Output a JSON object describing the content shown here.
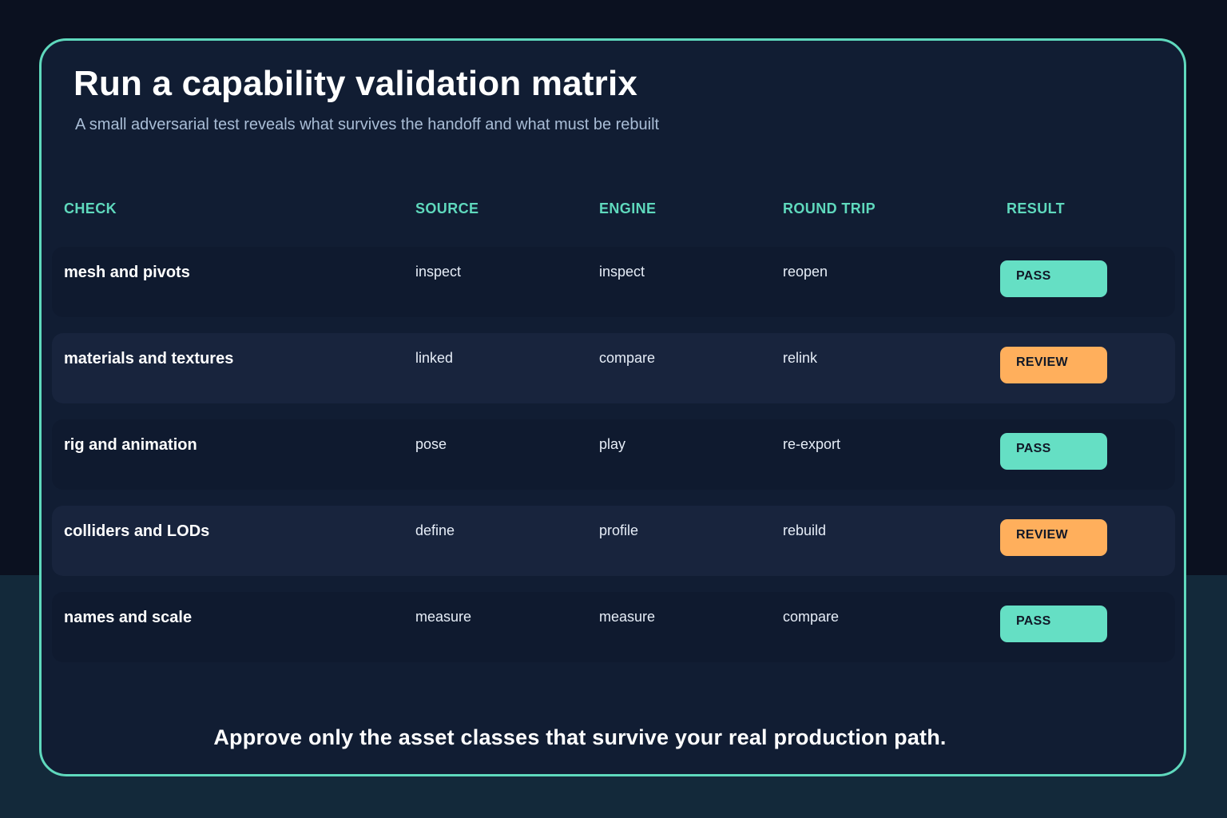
{
  "title": "Run a capability validation matrix",
  "subtitle": "A small adversarial test reveals what survives the handoff and what must be rebuilt",
  "columns": {
    "check": "CHECK",
    "source": "SOURCE",
    "engine": "ENGINE",
    "round_trip": "ROUND TRIP",
    "result": "RESULT"
  },
  "rows": [
    {
      "check": "mesh and pivots",
      "source": "inspect",
      "engine": "inspect",
      "round_trip": "reopen",
      "result": "PASS"
    },
    {
      "check": "materials and textures",
      "source": "linked",
      "engine": "compare",
      "round_trip": "relink",
      "result": "REVIEW"
    },
    {
      "check": "rig and animation",
      "source": "pose",
      "engine": "play",
      "round_trip": "re-export",
      "result": "PASS"
    },
    {
      "check": "colliders and LODs",
      "source": "define",
      "engine": "profile",
      "round_trip": "rebuild",
      "result": "REVIEW"
    },
    {
      "check": "names and scale",
      "source": "measure",
      "engine": "measure",
      "round_trip": "compare",
      "result": "PASS"
    }
  ],
  "footer": "Approve only the asset classes that survive your real production path.",
  "colors": {
    "accent": "#5fd9bd",
    "pass": "#65dfc4",
    "review": "#ffaf5c",
    "card": "#111d33",
    "background": "#0b1120"
  }
}
